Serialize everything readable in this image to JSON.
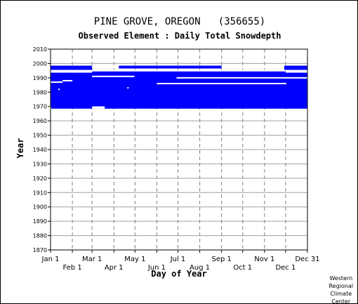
{
  "chart_data": {
    "type": "bar",
    "title": "PINE GROVE, OREGON   (356655)",
    "subtitle": "Observed Element : Daily Total Snowdepth",
    "xlabel": "Day of Year",
    "ylabel": "Year",
    "xlim": [
      1,
      366
    ],
    "ylim": [
      1870,
      2010
    ],
    "grid": true,
    "y_ticks": [
      1870,
      1880,
      1890,
      1900,
      1910,
      1920,
      1930,
      1940,
      1950,
      1960,
      1970,
      1980,
      1990,
      2000,
      2010
    ],
    "x_ticks_top_row": [
      {
        "label": "Jan 1",
        "day": 1
      },
      {
        "label": "Mar 1",
        "day": 60
      },
      {
        "label": "May 1",
        "day": 121
      },
      {
        "label": "Jul 1",
        "day": 182
      },
      {
        "label": "Sep 1",
        "day": 244
      },
      {
        "label": "Nov 1",
        "day": 305
      },
      {
        "label": "Dec 31",
        "day": 366
      }
    ],
    "x_ticks_bottom_row": [
      {
        "label": "Feb 1",
        "day": 32
      },
      {
        "label": "Apr 1",
        "day": 91
      },
      {
        "label": "Jun 1",
        "day": 152
      },
      {
        "label": "Aug 1",
        "day": 213
      },
      {
        "label": "Oct 1",
        "day": 274
      },
      {
        "label": "Dec 1",
        "day": 335
      }
    ],
    "series": [
      {
        "color": "#0000ff",
        "year_ranges": [
          {
            "year_start": 1969,
            "year_end": 1994,
            "day_start": 1,
            "day_end": 366
          }
        ],
        "gaps": [
          {
            "year_start": 1969,
            "year_end": 1969.6,
            "day_start": 60,
            "day_end": 78
          },
          {
            "year_start": 1969,
            "year_end": 1969.6,
            "day_start": 1,
            "day_end": 2
          },
          {
            "year_start": 1994.1,
            "year_end": 1995,
            "day_start": 1,
            "day_end": 60
          },
          {
            "year_start": 1994.1,
            "year_end": 1995,
            "day_start": 335,
            "day_end": 366
          }
        ],
        "line_segments": [
          {
            "year": 1998,
            "day_start": 1,
            "day_end": 60
          },
          {
            "year": 1998,
            "day_start": 98,
            "day_end": 244
          },
          {
            "year": 1998,
            "day_start": 333,
            "day_end": 366
          },
          {
            "year": 1997,
            "day_start": 1,
            "day_end": 60
          },
          {
            "year": 1997,
            "day_start": 98,
            "day_end": 244
          },
          {
            "year": 1997,
            "day_start": 333,
            "day_end": 366
          },
          {
            "year": 1996,
            "day_start": 1,
            "day_end": 60
          },
          {
            "year": 1996,
            "day_start": 333,
            "day_end": 366
          }
        ],
        "white_marks": [
          {
            "year": 1995,
            "day_start": 1,
            "day_end": 366
          },
          {
            "year": 1991,
            "day_start": 60,
            "day_end": 120
          },
          {
            "year": 1990,
            "day_start": 180,
            "day_end": 366
          },
          {
            "year": 1988,
            "day_start": 18,
            "day_end": 32
          },
          {
            "year": 1987,
            "day_start": 1,
            "day_end": 18
          },
          {
            "year": 1986,
            "day_start": 152,
            "day_end": 336
          },
          {
            "year": 1983,
            "day_start": 110,
            "day_end": 112
          },
          {
            "year": 1982,
            "day_start": 12,
            "day_end": 14
          }
        ]
      }
    ]
  },
  "credit": [
    "Western",
    "Regional",
    "Climate",
    "Center"
  ]
}
